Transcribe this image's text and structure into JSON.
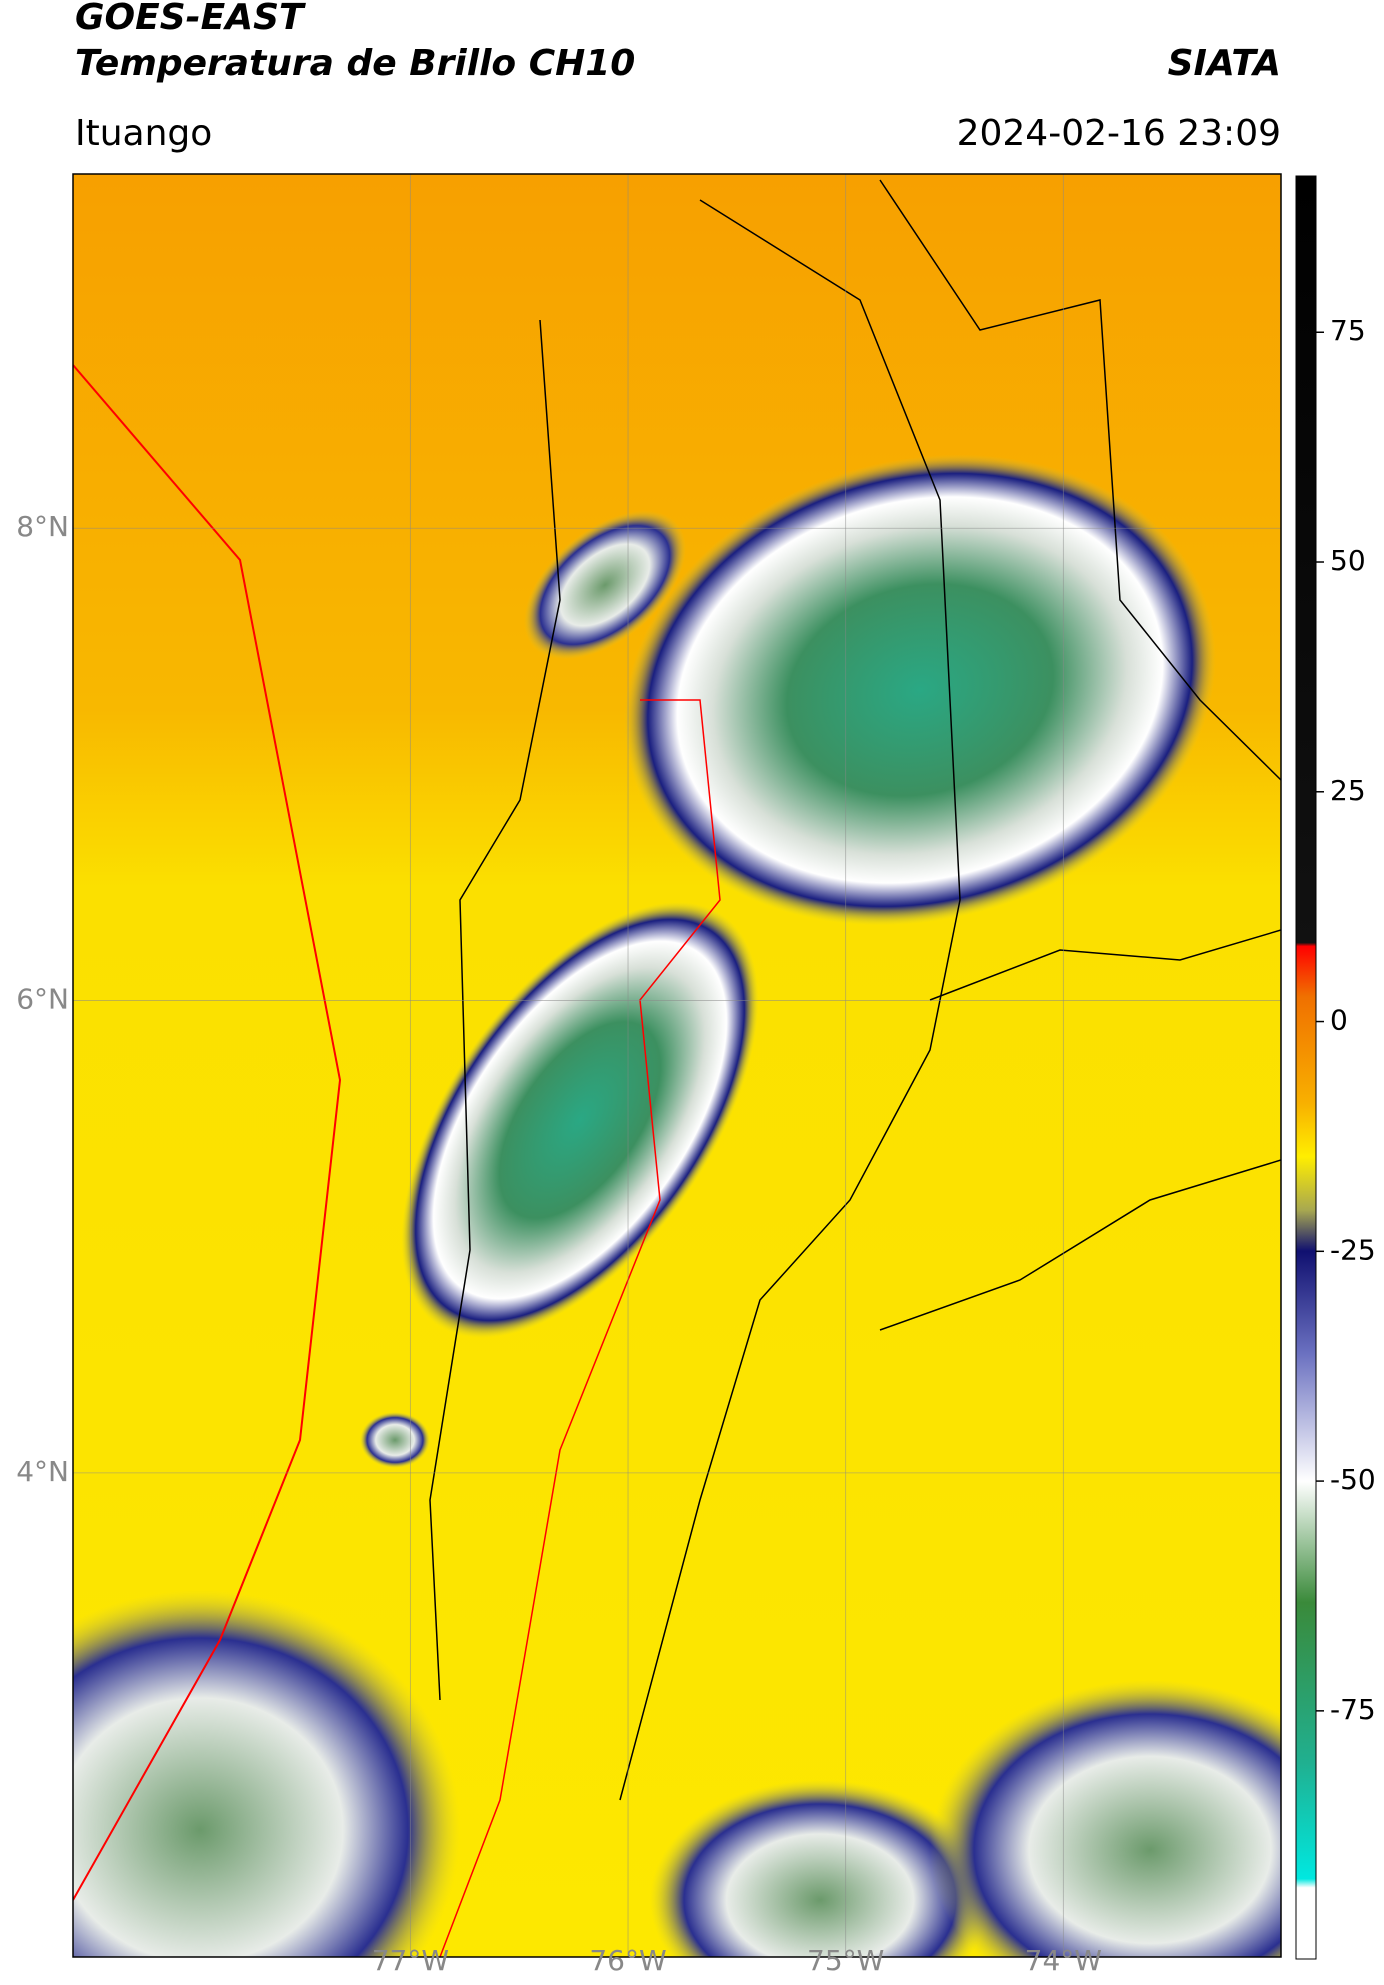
{
  "header": {
    "title": "GOES-EAST",
    "subtitle": "Temperatura de Brillo CH10",
    "source": "SIATA",
    "location": "Ituango",
    "datetime": "2024-02-16 23:09"
  },
  "map": {
    "lon_ticks": [
      {
        "value": -77,
        "label": "77°W"
      },
      {
        "value": -76,
        "label": "76°W"
      },
      {
        "value": -75,
        "label": "75°W"
      },
      {
        "value": -74,
        "label": "74°W"
      }
    ],
    "lat_ticks": [
      {
        "value": 8,
        "label": "8°N"
      },
      {
        "value": 6,
        "label": "6°N"
      },
      {
        "value": 4,
        "label": "4°N"
      }
    ],
    "xlim": [
      -78.55,
      -73.0
    ],
    "ylim": [
      1.95,
      9.5
    ]
  },
  "colorbar": {
    "ylim": [
      -102,
      92
    ],
    "yticks": [
      75,
      50,
      25,
      0,
      -25,
      -50,
      -75
    ]
  }
}
